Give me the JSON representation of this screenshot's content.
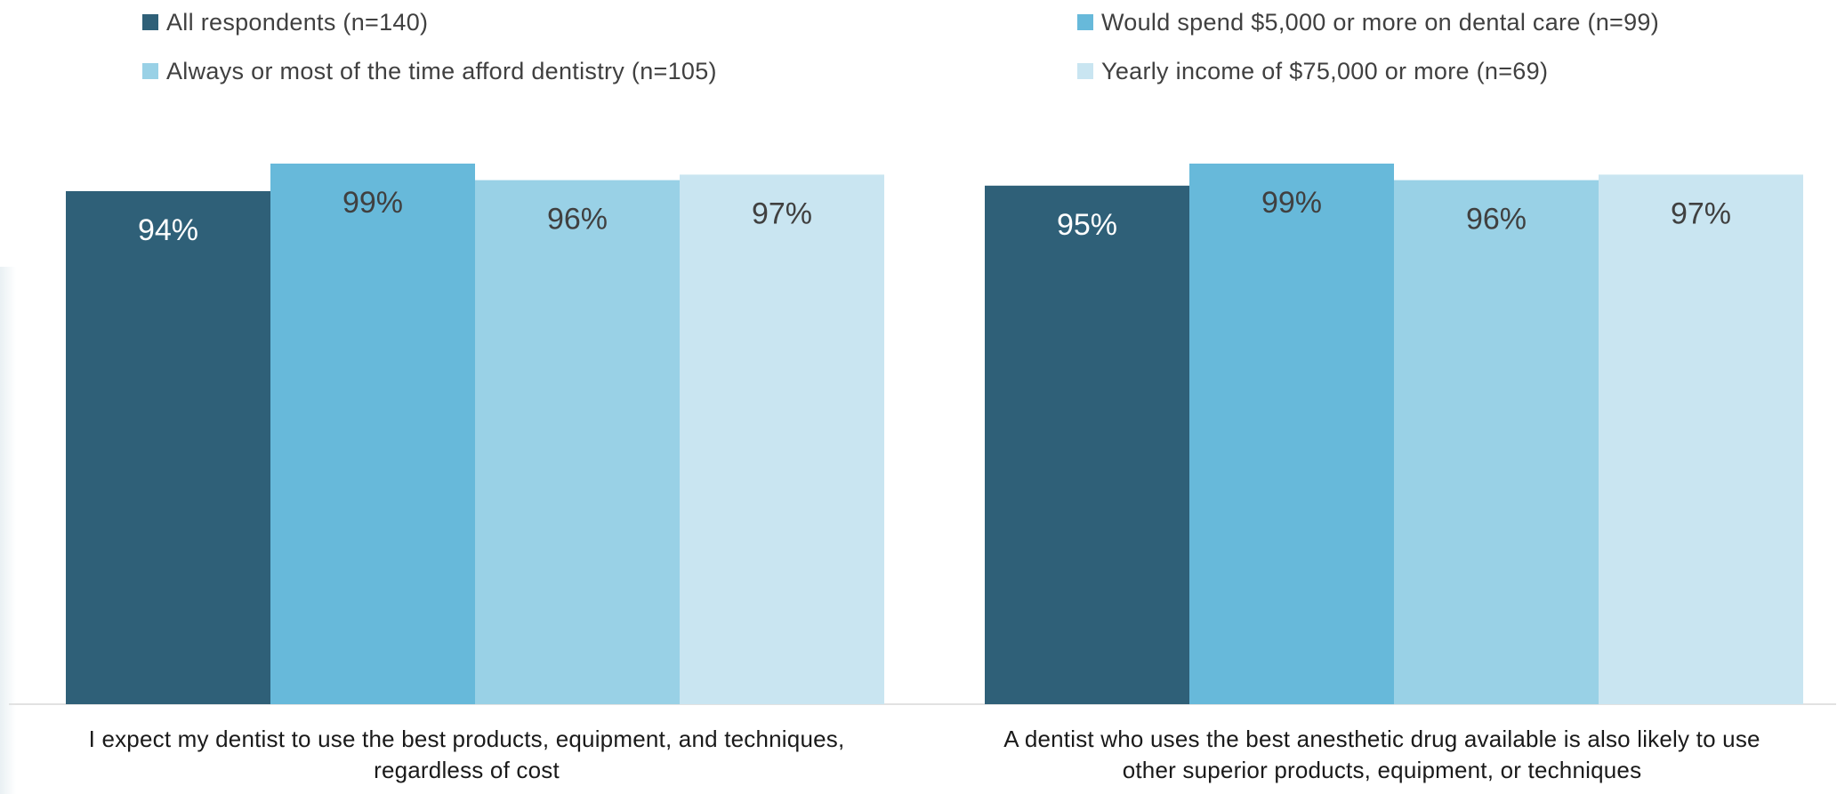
{
  "chart_data": {
    "type": "bar",
    "title": "",
    "xlabel": "",
    "ylabel": "",
    "ylim": [
      0,
      100
    ],
    "grid": false,
    "legend_placement": "top",
    "categories": [
      "I expect my dentist to use the best products, equipment, and techniques, regardless of cost",
      "A dentist who uses the best anesthetic drug available is also likely to use other superior products, equipment, or techniques"
    ],
    "category_lines": [
      [
        "I expect my dentist to use the best products, equipment, and techniques,",
        "regardless of cost"
      ],
      [
        "A dentist who uses the best anesthetic drug available is also likely to use",
        "other superior products, equipment, or techniques"
      ]
    ],
    "series": [
      {
        "name": "All respondents (n=140)",
        "values": [
          94,
          95
        ],
        "labels": [
          "94%",
          "95%"
        ],
        "color": "#2f6078",
        "label_color": "#ffffff"
      },
      {
        "name": "Would spend $5,000 or more on dental care (n=99)",
        "values": [
          99,
          99
        ],
        "labels": [
          "99%",
          "99%"
        ],
        "color": "#67b9da",
        "label_color": "#404040"
      },
      {
        "name": "Always or most of the time afford dentistry (n=105)",
        "values": [
          96,
          96
        ],
        "labels": [
          "96%",
          "96%"
        ],
        "color": "#99d1e6",
        "label_color": "#404040"
      },
      {
        "name": "Yearly income of $75,000 or more (n=69)",
        "values": [
          97,
          97
        ],
        "labels": [
          "97%",
          "97%"
        ],
        "color": "#c9e5f1",
        "label_color": "#404040"
      }
    ]
  }
}
